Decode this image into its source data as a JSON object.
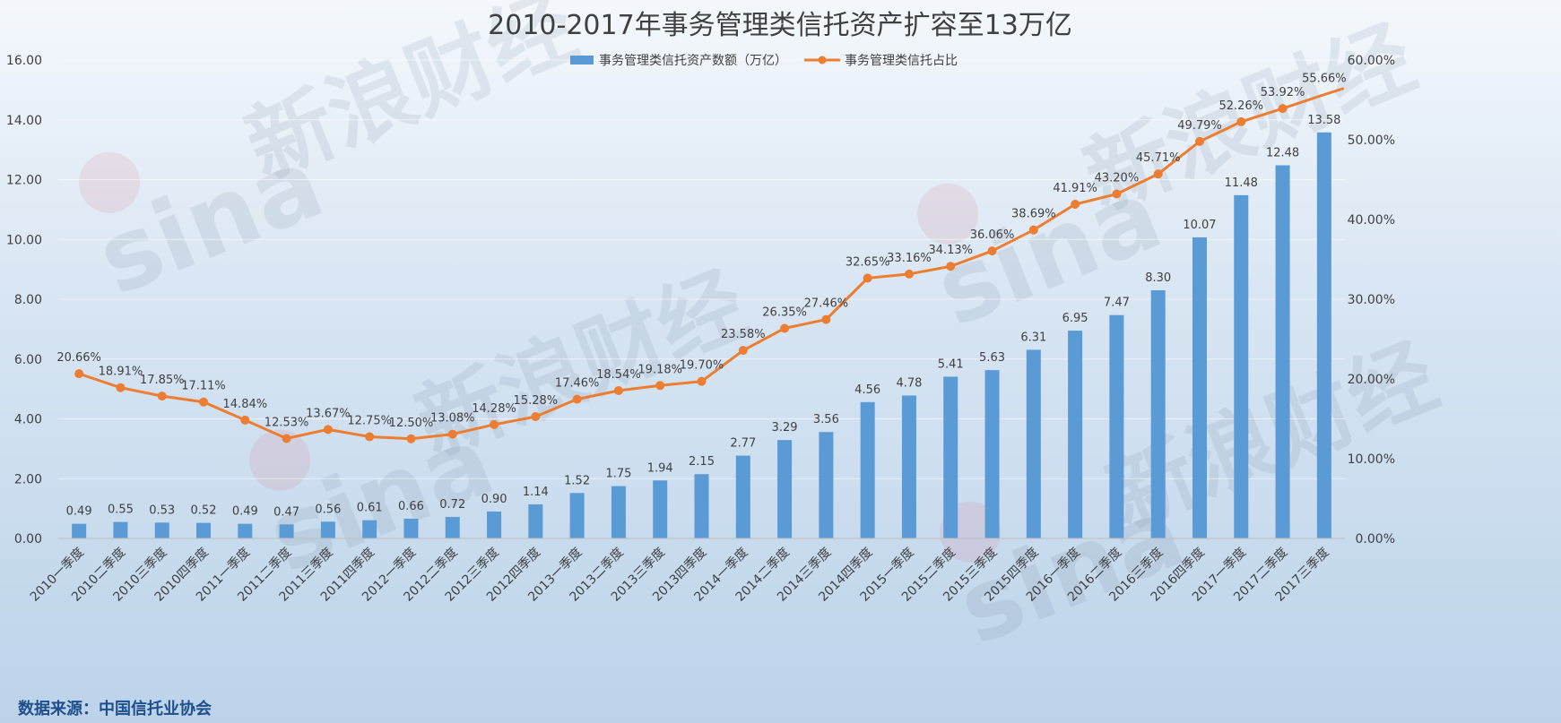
{
  "source": "数据来源：中国信托业协会",
  "watermark": {
    "logo_text": "sina",
    "cn_text": "新浪财经"
  },
  "colors": {
    "bar": "#5b9bd5",
    "line": "#ed7d31",
    "text": "#404040",
    "source": "#1f4e8c"
  },
  "chart_data": {
    "type": "bar",
    "title": "2010-2017年事务管理类信托资产扩容至13万亿",
    "categories": [
      "2010一季度",
      "2010二季度",
      "2010三季度",
      "2010四季度",
      "2011一季度",
      "2011二季度",
      "2011三季度",
      "2011四季度",
      "2012一季度",
      "2012二季度",
      "2012三季度",
      "2012四季度",
      "2013一季度",
      "2013二季度",
      "2013三季度",
      "2013四季度",
      "2014一季度",
      "2014二季度",
      "2014三季度",
      "2014四季度",
      "2015一季度",
      "2015二季度",
      "2015三季度",
      "2015四季度",
      "2016一季度",
      "2016二季度",
      "2016三季度",
      "2016四季度",
      "2017一季度",
      "2017二季度",
      "2017三季度"
    ],
    "series": [
      {
        "name": "事务管理类信托资产数额（万亿）",
        "type": "bar",
        "axis": "left",
        "values": [
          0.49,
          0.55,
          0.53,
          0.52,
          0.49,
          0.47,
          0.56,
          0.61,
          0.66,
          0.72,
          0.9,
          1.14,
          1.52,
          1.75,
          1.94,
          2.15,
          2.77,
          3.29,
          3.56,
          4.56,
          4.78,
          5.41,
          5.63,
          6.31,
          6.95,
          7.47,
          8.3,
          10.07,
          11.48,
          12.48,
          13.58
        ],
        "labels": [
          "0.49",
          "0.55",
          "0.53",
          "0.52",
          "0.49",
          "0.47",
          "0.56",
          "0.61",
          "0.66",
          "0.72",
          "0.90",
          "1.14",
          "1.52",
          "1.75",
          "1.94",
          "2.15",
          "2.77",
          "3.29",
          "3.56",
          "4.56",
          "4.78",
          "5.41",
          "5.63",
          "6.31",
          "6.95",
          "7.47",
          "8.30",
          "10.07",
          "11.48",
          "12.48",
          "13.58"
        ]
      },
      {
        "name": "事务管理类信托占比",
        "type": "line",
        "axis": "right",
        "values": [
          20.66,
          18.91,
          17.85,
          17.11,
          14.84,
          12.53,
          13.67,
          12.75,
          12.5,
          13.08,
          14.28,
          15.28,
          17.46,
          18.54,
          19.18,
          19.7,
          23.58,
          26.35,
          27.46,
          32.65,
          33.16,
          34.13,
          36.06,
          38.69,
          41.91,
          43.2,
          45.71,
          49.79,
          52.26,
          53.92,
          55.66
        ],
        "labels": [
          "20.66%",
          "18.91%",
          "17.85%",
          "17.11%",
          "14.84%",
          "12.53%",
          "13.67%",
          "12.75%",
          "12.50%",
          "13.08%",
          "14.28%",
          "15.28%",
          "17.46%",
          "18.54%",
          "19.18%",
          "19.70%",
          "23.58%",
          "26.35%",
          "27.46%",
          "32.65%",
          "33.16%",
          "34.13%",
          "36.06%",
          "38.69%",
          "41.91%",
          "43.20%",
          "45.71%",
          "49.79%",
          "52.26%",
          "53.92%",
          "55.66%"
        ]
      }
    ],
    "y_left": {
      "ylim": [
        0,
        16
      ],
      "ticks": [
        "0.00",
        "2.00",
        "4.00",
        "6.00",
        "8.00",
        "10.00",
        "12.00",
        "14.00",
        "16.00"
      ]
    },
    "y_right": {
      "ylim": [
        0,
        60
      ],
      "ticks": [
        "0.00%",
        "10.00%",
        "20.00%",
        "30.00%",
        "40.00%",
        "50.00%",
        "60.00%"
      ]
    },
    "grid": true,
    "legend": "top-center"
  }
}
